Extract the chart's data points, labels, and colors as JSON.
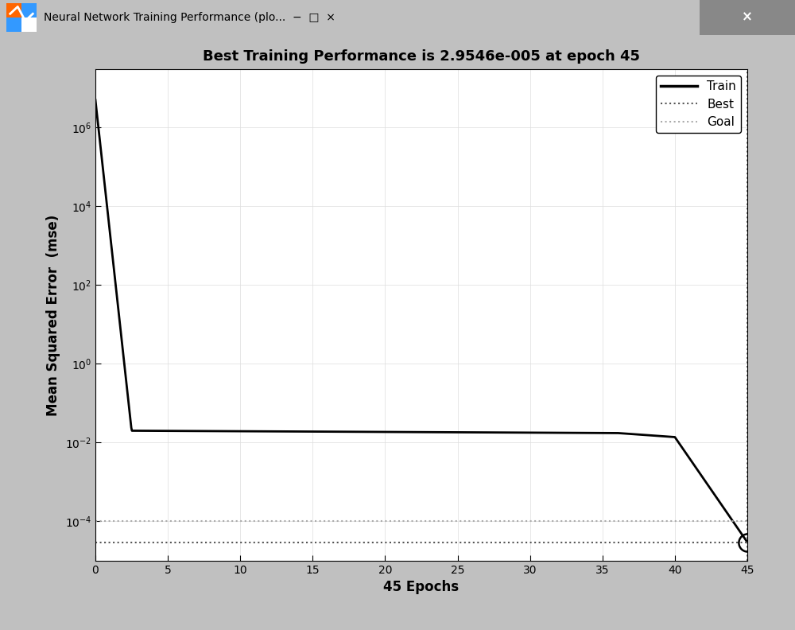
{
  "title": "Best Training Performance is 2.9546e-005 at epoch 45",
  "xlabel": "45 Epochs",
  "ylabel": "Mean Squared Error  (mse)",
  "best_value": 2.9546e-05,
  "best_epoch": 45,
  "goal_value": 0.0001,
  "best_line_value": 2.9546e-05,
  "train_color": "#000000",
  "best_color": "#555555",
  "goal_color": "#aaaaaa",
  "bg_color": "#c0c0c0",
  "plot_bg_color": "#ffffff",
  "titlebar_color": "#c8c8c8",
  "legend_labels": [
    "Train",
    "Best",
    "Goal"
  ],
  "ylim_low": 1e-05,
  "ylim_high": 30000000.0,
  "xlim_low": 0,
  "xlim_high": 45,
  "title_fontsize": 13,
  "label_fontsize": 12,
  "tick_fontsize": 10
}
